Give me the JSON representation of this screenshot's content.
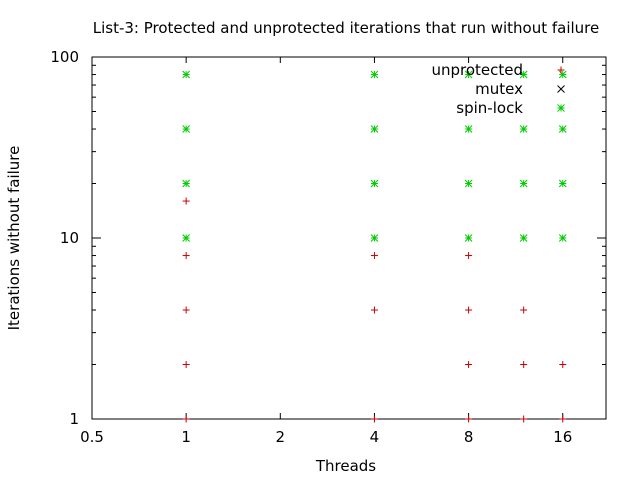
{
  "chart_data": {
    "type": "scatter",
    "title": "List-3: Protected and unprotected iterations that run without failure",
    "xlabel": "Threads",
    "ylabel": "Iterations without failure",
    "x_scale": "log2",
    "y_scale": "log10",
    "xlim": [
      0.5,
      22
    ],
    "ylim": [
      1,
      100
    ],
    "x_ticks": [
      {
        "value": 0.5,
        "label": "0.5"
      },
      {
        "value": 1,
        "label": "1"
      },
      {
        "value": 2,
        "label": "2"
      },
      {
        "value": 4,
        "label": "4"
      },
      {
        "value": 8,
        "label": "8"
      },
      {
        "value": 16,
        "label": "16"
      }
    ],
    "y_ticks": [
      {
        "value": 1,
        "label": "1"
      },
      {
        "value": 10,
        "label": "10"
      },
      {
        "value": 100,
        "label": "100"
      }
    ],
    "grid": false,
    "legend_position": "top-right",
    "series": [
      {
        "name": "unprotected",
        "marker": "plus",
        "color": "#cc0000",
        "points": [
          [
            1,
            1
          ],
          [
            1,
            2
          ],
          [
            1,
            4
          ],
          [
            1,
            8
          ],
          [
            1,
            16
          ],
          [
            4,
            1
          ],
          [
            4,
            4
          ],
          [
            4,
            8
          ],
          [
            8,
            1
          ],
          [
            8,
            2
          ],
          [
            8,
            4
          ],
          [
            8,
            8
          ],
          [
            12,
            1
          ],
          [
            12,
            2
          ],
          [
            12,
            4
          ],
          [
            16,
            1
          ],
          [
            16,
            2
          ]
        ]
      },
      {
        "name": "mutex",
        "marker": "cross",
        "color": "#000000",
        "points": []
      },
      {
        "name": "spin-lock",
        "marker": "star",
        "color": "#00cc00",
        "points": [
          [
            1,
            10
          ],
          [
            1,
            20
          ],
          [
            1,
            40
          ],
          [
            1,
            80
          ],
          [
            4,
            10
          ],
          [
            4,
            20
          ],
          [
            4,
            40
          ],
          [
            4,
            80
          ],
          [
            8,
            10
          ],
          [
            8,
            20
          ],
          [
            8,
            40
          ],
          [
            8,
            80
          ],
          [
            12,
            10
          ],
          [
            12,
            20
          ],
          [
            12,
            40
          ],
          [
            12,
            80
          ],
          [
            16,
            10
          ],
          [
            16,
            20
          ],
          [
            16,
            40
          ],
          [
            16,
            80
          ]
        ]
      }
    ]
  }
}
